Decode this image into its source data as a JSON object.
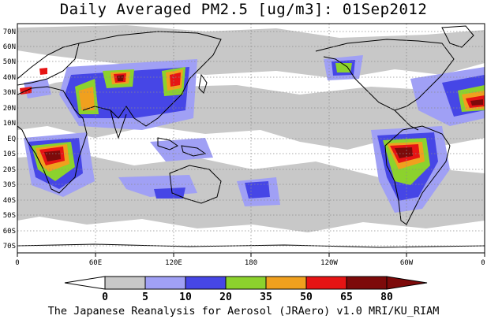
{
  "title": "Daily Averaged PM2.5 [ug/m3]: 01Sep2012",
  "credit": "The Japanese Reanalysis for Aerosol (JRAero) v1.0 MRI/KU_RIAM",
  "lat_labels": [
    "70N",
    "60N",
    "50N",
    "40N",
    "30N",
    "20N",
    "10N",
    "EQ",
    "10S",
    "20S",
    "30S",
    "40S",
    "50S",
    "60S",
    "70S"
  ],
  "lon_labels": [
    "0",
    "60E",
    "120E",
    "180",
    "120W",
    "60W",
    "0"
  ],
  "colorbar": {
    "levels": [
      "0",
      "5",
      "10",
      "20",
      "35",
      "50",
      "65",
      "80"
    ],
    "colors": [
      "#ffffff",
      "#c8c8c8",
      "#a0a0f5",
      "#4646e6",
      "#8cd22d",
      "#f0a01e",
      "#e61414",
      "#7d0a0a"
    ]
  },
  "map": {
    "projection": "equirectangular",
    "lon_range": [
      0,
      360
    ],
    "lat_range": [
      -75,
      75
    ],
    "gridlines": "dotted",
    "coastlines": true
  }
}
